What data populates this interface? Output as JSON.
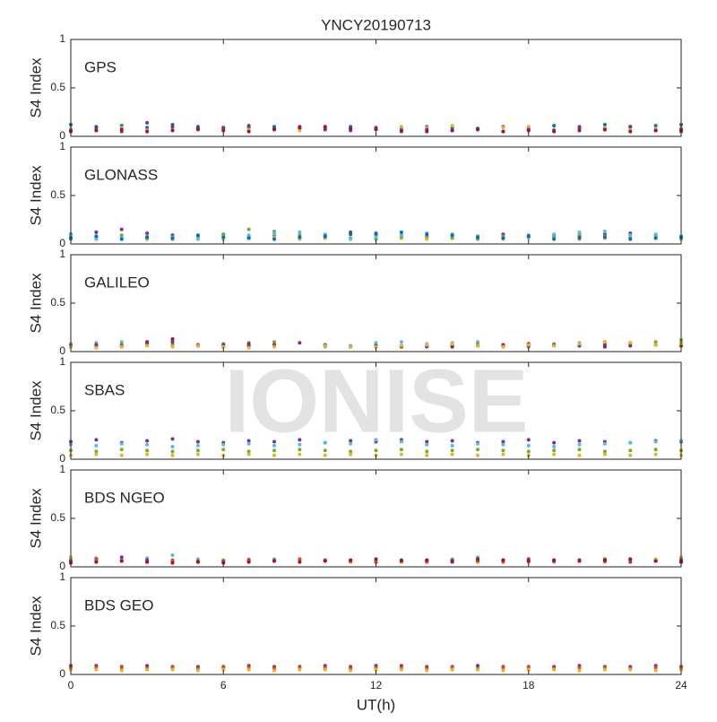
{
  "watermark": "IONISE",
  "chart_data": [
    {
      "type": "scatter",
      "title": "YNCY20190713",
      "label": "GPS",
      "ylabel": "S4 Index",
      "xlim": [
        0,
        24
      ],
      "xticks": [
        0,
        6,
        12,
        18,
        24
      ],
      "ylim": [
        0,
        1
      ],
      "yticks": [
        0,
        0.5,
        1
      ],
      "x": [
        0,
        1,
        2,
        3,
        4,
        5,
        6,
        7,
        8,
        9,
        10,
        11,
        12,
        13,
        14,
        15,
        16,
        17,
        18,
        19,
        20,
        21,
        22,
        23,
        24
      ],
      "series": [
        {
          "color": "#0072BD",
          "values": [
            0.12,
            0.1,
            0.11,
            0.09,
            0.12,
            0.1,
            0.08,
            0.09,
            0.1,
            0.08,
            0.09,
            0.1,
            0.08,
            0.09,
            0.1,
            0.09,
            0.08,
            0.1,
            0.09,
            0.11,
            0.1,
            0.12,
            0.1,
            0.11,
            0.12
          ]
        },
        {
          "color": "#EDB120",
          "values": [
            0.08,
            0.07,
            0.09,
            0.06,
            0.08,
            0.07,
            0.06,
            0.07,
            0.08,
            0.06,
            0.07,
            0.08,
            0.07,
            0.1,
            0.09,
            0.11,
            0.08,
            0.09,
            0.1,
            0.07,
            0.08,
            0.09,
            0.07,
            0.08,
            0.09
          ]
        },
        {
          "color": "#7E2F8E",
          "values": [
            0.06,
            0.09,
            0.05,
            0.14,
            0.1,
            0.07,
            0.09,
            0.11,
            0.08,
            0.1,
            0.07,
            0.06,
            0.09,
            0.05,
            0.07,
            0.06,
            0.08,
            0.05,
            0.07,
            0.06,
            0.09,
            0.07,
            0.1,
            0.06,
            0.05
          ]
        },
        {
          "color": "#A2142F",
          "values": [
            0.05,
            0.06,
            0.07,
            0.05,
            0.06,
            0.08,
            0.06,
            0.05,
            0.07,
            0.09,
            0.1,
            0.08,
            0.07,
            0.06,
            0.05,
            0.06,
            0.07,
            0.05,
            0.06,
            0.05,
            0.06,
            0.07,
            0.05,
            0.06,
            0.07
          ]
        }
      ]
    },
    {
      "type": "scatter",
      "label": "GLONASS",
      "ylabel": "S4 Index",
      "xlim": [
        0,
        24
      ],
      "xticks": [
        0,
        6,
        12,
        18,
        24
      ],
      "ylim": [
        0,
        1
      ],
      "yticks": [
        0,
        0.5,
        1
      ],
      "x": [
        0,
        1,
        2,
        3,
        4,
        5,
        6,
        7,
        8,
        9,
        10,
        11,
        12,
        13,
        14,
        15,
        16,
        17,
        18,
        19,
        20,
        21,
        22,
        23,
        24
      ],
      "series": [
        {
          "color": "#7E2F8E",
          "values": [
            0.1,
            0.12,
            0.15,
            0.11,
            0.09,
            0.08,
            0.1,
            0.07,
            0.08,
            0.06,
            0.09,
            0.12,
            0.1,
            0.08,
            0.07,
            0.09,
            0.08,
            0.1,
            0.07,
            0.09,
            0.08,
            0.1,
            0.11,
            0.09,
            0.08
          ]
        },
        {
          "color": "#EDB120",
          "values": [
            0.07,
            0.06,
            0.08,
            0.05,
            0.07,
            0.06,
            0.05,
            0.06,
            0.07,
            0.05,
            0.06,
            0.05,
            0.07,
            0.06,
            0.05,
            0.07,
            0.06,
            0.05,
            0.06,
            0.07,
            0.05,
            0.06,
            0.07,
            0.06,
            0.05
          ]
        },
        {
          "color": "#77AC30",
          "values": [
            0.05,
            0.07,
            0.09,
            0.06,
            0.05,
            0.08,
            0.1,
            0.15,
            0.13,
            0.09,
            0.07,
            0.06,
            0.05,
            0.07,
            0.08,
            0.06,
            0.05,
            0.08,
            0.09,
            0.07,
            0.1,
            0.08,
            0.06,
            0.07,
            0.06
          ]
        },
        {
          "color": "#4DBEEE",
          "values": [
            0.09,
            0.05,
            0.06,
            0.08,
            0.07,
            0.05,
            0.06,
            0.09,
            0.11,
            0.12,
            0.1,
            0.05,
            0.07,
            0.09,
            0.11,
            0.1,
            0.08,
            0.06,
            0.07,
            0.1,
            0.12,
            0.13,
            0.09,
            0.1,
            0.08
          ]
        },
        {
          "color": "#0072BD",
          "values": [
            0.06,
            0.08,
            0.05,
            0.07,
            0.06,
            0.09,
            0.07,
            0.06,
            0.05,
            0.07,
            0.08,
            0.1,
            0.11,
            0.12,
            0.1,
            0.09,
            0.07,
            0.06,
            0.08,
            0.05,
            0.06,
            0.07,
            0.05,
            0.06,
            0.07
          ]
        }
      ]
    },
    {
      "type": "scatter",
      "label": "GALILEO",
      "ylabel": "S4 Index",
      "xlim": [
        0,
        24
      ],
      "xticks": [
        0,
        6,
        12,
        18,
        24
      ],
      "ylim": [
        0,
        1
      ],
      "yticks": [
        0,
        0.5,
        1
      ],
      "x": [
        0,
        1,
        2,
        3,
        4,
        5,
        6,
        7,
        8,
        9,
        10,
        11,
        12,
        13,
        14,
        15,
        16,
        17,
        18,
        19,
        20,
        21,
        22,
        23,
        24
      ],
      "series": [
        {
          "color": "#4DBEEE",
          "values": [
            0.08,
            0.09,
            0.1,
            0.07,
            0.08,
            0.06,
            0.07,
            0.06,
            null,
            null,
            0.05,
            0.06,
            0.09,
            0.1,
            0.08,
            0.09,
            0.1,
            0.07,
            0.06,
            0.08,
            0.09,
            0.1,
            0.08,
            0.07,
            0.09
          ]
        },
        {
          "color": "#77AC30",
          "values": [
            0.07,
            0.06,
            0.08,
            0.09,
            0.07,
            0.06,
            0.08,
            0.09,
            0.1,
            null,
            0.07,
            0.05,
            0.06,
            0.05,
            0.06,
            0.07,
            0.08,
            0.06,
            0.05,
            0.06,
            0.07,
            0.08,
            0.09,
            0.1,
            0.12
          ]
        },
        {
          "color": "#A2142F",
          "values": [
            0.05,
            0.06,
            0.05,
            0.1,
            0.13,
            0.07,
            0.05,
            0.06,
            0.07,
            null,
            0.06,
            0.05,
            0.06,
            0.05,
            0.06,
            0.05,
            0.06,
            0.07,
            0.08,
            0.07,
            0.06,
            0.05,
            0.06,
            0.07,
            0.06
          ]
        },
        {
          "color": "#7E2F8E",
          "values": [
            0.06,
            0.07,
            0.06,
            0.08,
            0.1,
            0.06,
            0.07,
            0.08,
            0.07,
            0.09,
            0.07,
            0.05,
            0.05,
            0.06,
            0.05,
            0.07,
            0.06,
            0.05,
            0.06,
            0.07,
            0.06,
            0.07,
            0.08,
            0.07,
            0.08
          ]
        },
        {
          "color": "#EDB120",
          "values": [
            0.05,
            0.04,
            0.05,
            0.06,
            0.05,
            0.06,
            0.05,
            0.04,
            0.05,
            null,
            0.06,
            0.05,
            0.05,
            0.06,
            0.07,
            0.08,
            0.06,
            0.05,
            0.07,
            0.06,
            0.08,
            0.1,
            0.09,
            0.07,
            0.08
          ]
        }
      ]
    },
    {
      "type": "scatter",
      "label": "SBAS",
      "ylabel": "S4 Index",
      "xlim": [
        0,
        24
      ],
      "xticks": [
        0,
        6,
        12,
        18,
        24
      ],
      "ylim": [
        0,
        1
      ],
      "yticks": [
        0,
        0.5,
        1
      ],
      "x": [
        0,
        1,
        2,
        3,
        4,
        5,
        6,
        7,
        8,
        9,
        10,
        11,
        12,
        13,
        14,
        15,
        16,
        17,
        18,
        19,
        20,
        21,
        22,
        23,
        24
      ],
      "series": [
        {
          "color": "#7E2F8E",
          "values": [
            0.18,
            0.2,
            0.17,
            0.19,
            0.21,
            0.18,
            0.17,
            0.19,
            0.18,
            0.2,
            0.17,
            0.19,
            0.18,
            0.2,
            0.18,
            0.19,
            0.17,
            0.18,
            0.2,
            0.17,
            0.19,
            0.18,
            0.17,
            0.19,
            0.18
          ]
        },
        {
          "color": "#4DBEEE",
          "values": [
            0.15,
            0.14,
            0.16,
            0.15,
            0.13,
            0.14,
            0.15,
            0.16,
            0.14,
            0.15,
            0.17,
            0.16,
            0.2,
            0.18,
            0.15,
            0.14,
            0.16,
            0.15,
            0.14,
            0.13,
            0.15,
            0.16,
            0.17,
            0.18,
            0.19
          ]
        },
        {
          "color": "#77AC30",
          "values": [
            0.09,
            0.08,
            0.1,
            0.09,
            0.08,
            0.09,
            0.1,
            0.08,
            0.09,
            0.1,
            0.09,
            0.08,
            0.09,
            0.1,
            0.08,
            0.09,
            0.1,
            0.09,
            0.08,
            0.09,
            0.1,
            0.08,
            0.09,
            0.1,
            0.09
          ]
        },
        {
          "color": "#EDB120",
          "values": [
            0.04,
            0.05,
            0.04,
            0.05,
            0.04,
            0.05,
            0.04,
            0.05,
            0.04,
            0.05,
            0.04,
            0.05,
            0.04,
            0.05,
            0.04,
            0.05,
            0.04,
            0.05,
            0.04,
            0.05,
            0.04,
            0.05,
            0.04,
            0.05,
            0.04
          ]
        }
      ]
    },
    {
      "type": "scatter",
      "label": "BDS NGEO",
      "ylabel": "S4 Index",
      "xlim": [
        0,
        24
      ],
      "xticks": [
        0,
        6,
        12,
        18,
        24
      ],
      "ylim": [
        0,
        1
      ],
      "yticks": [
        0,
        0.5,
        1
      ],
      "x": [
        0,
        1,
        2,
        3,
        4,
        5,
        6,
        7,
        8,
        9,
        10,
        11,
        12,
        13,
        14,
        15,
        16,
        17,
        18,
        19,
        20,
        21,
        22,
        23,
        24
      ],
      "series": [
        {
          "color": "#4DBEEE",
          "values": [
            0.08,
            0.06,
            0.07,
            0.09,
            0.12,
            0.08,
            0.07,
            0.06,
            0.08,
            0.07,
            0.06,
            0.05,
            0.06,
            0.07,
            0.06,
            0.08,
            0.1,
            0.07,
            0.06,
            0.05,
            0.07,
            0.06,
            0.08,
            0.07,
            0.09
          ]
        },
        {
          "color": "#EDB120",
          "values": [
            0.1,
            0.09,
            0.07,
            0.06,
            0.05,
            0.06,
            0.07,
            0.08,
            0.06,
            0.07,
            0.06,
            0.05,
            0.06,
            0.05,
            0.07,
            0.06,
            0.05,
            0.06,
            0.05,
            0.07,
            0.06,
            0.05,
            0.07,
            0.08,
            0.1
          ]
        },
        {
          "color": "#7E2F8E",
          "values": [
            0.06,
            0.08,
            0.1,
            0.07,
            0.06,
            0.05,
            0.06,
            0.07,
            0.06,
            0.08,
            0.07,
            0.06,
            0.05,
            0.07,
            0.06,
            0.05,
            0.06,
            0.07,
            0.08,
            0.06,
            0.07,
            0.06,
            0.05,
            0.06,
            0.07
          ]
        },
        {
          "color": "#D95319",
          "values": [
            0.05,
            0.07,
            0.06,
            0.05,
            0.07,
            0.06,
            0.05,
            0.06,
            0.07,
            0.08,
            0.07,
            0.06,
            0.05,
            0.06,
            0.05,
            0.07,
            0.06,
            0.05,
            0.06,
            0.07,
            0.06,
            0.08,
            0.07,
            0.06,
            0.05
          ]
        },
        {
          "color": "#A2142F",
          "values": [
            0.04,
            0.05,
            0.06,
            0.05,
            0.04,
            0.05,
            0.04,
            0.05,
            0.06,
            0.05,
            0.06,
            0.07,
            0.08,
            0.06,
            0.07,
            0.06,
            0.08,
            0.07,
            0.06,
            0.07,
            0.06,
            0.07,
            0.08,
            0.06,
            0.05
          ]
        }
      ]
    },
    {
      "type": "scatter",
      "label": "BDS GEO",
      "ylabel": "S4 Index",
      "xlabel": "UT(h)",
      "xlim": [
        0,
        24
      ],
      "xticks": [
        0,
        6,
        12,
        18,
        24
      ],
      "ylim": [
        0,
        1
      ],
      "yticks": [
        0,
        0.5,
        1
      ],
      "x": [
        0,
        1,
        2,
        3,
        4,
        5,
        6,
        7,
        8,
        9,
        10,
        11,
        12,
        13,
        14,
        15,
        16,
        17,
        18,
        19,
        20,
        21,
        22,
        23,
        24
      ],
      "series": [
        {
          "color": "#7E2F8E",
          "values": [
            0.09,
            0.09,
            0.08,
            0.09,
            0.08,
            0.08,
            0.08,
            0.09,
            0.08,
            0.08,
            0.09,
            0.08,
            0.09,
            0.09,
            0.08,
            0.08,
            0.09,
            0.08,
            0.08,
            0.08,
            0.09,
            0.08,
            0.08,
            0.09,
            0.08
          ]
        },
        {
          "color": "#D95319",
          "values": [
            0.07,
            0.07,
            0.07,
            0.06,
            0.07,
            0.06,
            0.07,
            0.07,
            0.06,
            0.07,
            0.07,
            0.06,
            0.07,
            0.07,
            0.06,
            0.07,
            0.06,
            0.07,
            0.07,
            0.06,
            0.07,
            0.07,
            0.06,
            0.07,
            0.07
          ]
        },
        {
          "color": "#EDB120",
          "values": [
            0.05,
            0.05,
            0.04,
            0.05,
            0.05,
            0.04,
            0.05,
            0.05,
            0.04,
            0.05,
            0.05,
            0.04,
            0.05,
            0.05,
            0.04,
            0.05,
            0.05,
            0.04,
            0.05,
            0.05,
            0.04,
            0.05,
            0.05,
            0.04,
            0.05
          ]
        }
      ]
    }
  ]
}
